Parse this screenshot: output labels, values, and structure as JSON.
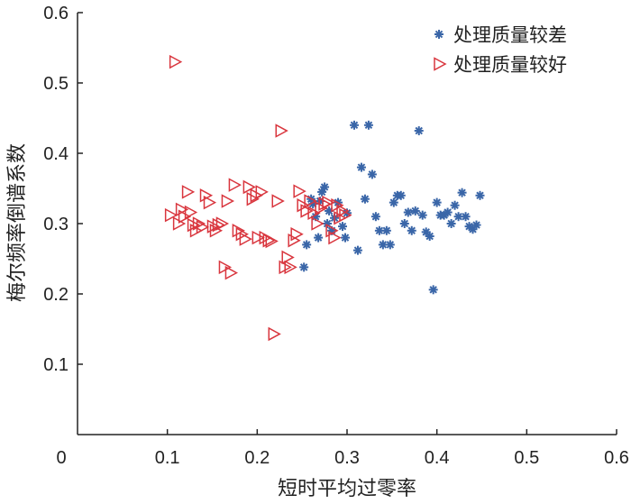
{
  "chart_data": {
    "type": "scatter",
    "title": "",
    "xlabel": "短时平均过零率",
    "ylabel": "梅尔频率倒谱系数",
    "xlim": [
      0,
      0.6
    ],
    "ylim": [
      0,
      0.6
    ],
    "x_ticks": [
      "0",
      "0.1",
      "0.2",
      "0.3",
      "0.4",
      "0.5",
      "0.6"
    ],
    "y_ticks": [
      "0.1",
      "0.2",
      "0.3",
      "0.4",
      "0.5",
      "0.6"
    ],
    "grid": false,
    "legend_position": "top-right",
    "series": [
      {
        "name": "处理质量较差",
        "marker": "asterisk",
        "color": "#3a66a8",
        "points": [
          [
            0.252,
            0.238
          ],
          [
            0.255,
            0.27
          ],
          [
            0.26,
            0.335
          ],
          [
            0.262,
            0.328
          ],
          [
            0.265,
            0.31
          ],
          [
            0.268,
            0.28
          ],
          [
            0.27,
            0.332
          ],
          [
            0.272,
            0.345
          ],
          [
            0.275,
            0.352
          ],
          [
            0.278,
            0.3
          ],
          [
            0.28,
            0.318
          ],
          [
            0.283,
            0.29
          ],
          [
            0.286,
            0.308
          ],
          [
            0.29,
            0.33
          ],
          [
            0.295,
            0.296
          ],
          [
            0.298,
            0.28
          ],
          [
            0.3,
            0.315
          ],
          [
            0.308,
            0.44
          ],
          [
            0.312,
            0.262
          ],
          [
            0.316,
            0.38
          ],
          [
            0.32,
            0.335
          ],
          [
            0.324,
            0.44
          ],
          [
            0.328,
            0.37
          ],
          [
            0.332,
            0.31
          ],
          [
            0.336,
            0.29
          ],
          [
            0.34,
            0.27
          ],
          [
            0.344,
            0.29
          ],
          [
            0.348,
            0.27
          ],
          [
            0.352,
            0.33
          ],
          [
            0.356,
            0.34
          ],
          [
            0.36,
            0.34
          ],
          [
            0.364,
            0.3
          ],
          [
            0.368,
            0.316
          ],
          [
            0.372,
            0.29
          ],
          [
            0.376,
            0.318
          ],
          [
            0.38,
            0.432
          ],
          [
            0.384,
            0.312
          ],
          [
            0.388,
            0.288
          ],
          [
            0.392,
            0.282
          ],
          [
            0.396,
            0.206
          ],
          [
            0.4,
            0.33
          ],
          [
            0.404,
            0.312
          ],
          [
            0.408,
            0.312
          ],
          [
            0.412,
            0.316
          ],
          [
            0.416,
            0.3
          ],
          [
            0.42,
            0.326
          ],
          [
            0.424,
            0.31
          ],
          [
            0.428,
            0.344
          ],
          [
            0.432,
            0.31
          ],
          [
            0.436,
            0.296
          ],
          [
            0.44,
            0.292
          ],
          [
            0.444,
            0.298
          ],
          [
            0.448,
            0.34
          ]
        ]
      },
      {
        "name": "处理质量较好",
        "marker": "triangle-right-open",
        "color": "#d9363e",
        "points": [
          [
            0.103,
            0.312
          ],
          [
            0.108,
            0.53
          ],
          [
            0.112,
            0.3
          ],
          [
            0.115,
            0.32
          ],
          [
            0.118,
            0.31
          ],
          [
            0.122,
            0.345
          ],
          [
            0.125,
            0.316
          ],
          [
            0.128,
            0.298
          ],
          [
            0.131,
            0.29
          ],
          [
            0.134,
            0.3
          ],
          [
            0.138,
            0.295
          ],
          [
            0.142,
            0.34
          ],
          [
            0.146,
            0.33
          ],
          [
            0.15,
            0.296
          ],
          [
            0.153,
            0.29
          ],
          [
            0.156,
            0.298
          ],
          [
            0.16,
            0.3
          ],
          [
            0.163,
            0.238
          ],
          [
            0.166,
            0.332
          ],
          [
            0.17,
            0.23
          ],
          [
            0.174,
            0.355
          ],
          [
            0.178,
            0.29
          ],
          [
            0.182,
            0.285
          ],
          [
            0.186,
            0.278
          ],
          [
            0.19,
            0.352
          ],
          [
            0.194,
            0.335
          ],
          [
            0.198,
            0.34
          ],
          [
            0.2,
            0.28
          ],
          [
            0.204,
            0.345
          ],
          [
            0.208,
            0.28
          ],
          [
            0.212,
            0.276
          ],
          [
            0.215,
            0.275
          ],
          [
            0.218,
            0.143
          ],
          [
            0.222,
            0.332
          ],
          [
            0.226,
            0.432
          ],
          [
            0.23,
            0.238
          ],
          [
            0.233,
            0.252
          ],
          [
            0.236,
            0.238
          ],
          [
            0.24,
            0.276
          ],
          [
            0.243,
            0.285
          ],
          [
            0.246,
            0.346
          ],
          [
            0.25,
            0.326
          ],
          [
            0.254,
            0.318
          ],
          [
            0.258,
            0.332
          ],
          [
            0.262,
            0.315
          ],
          [
            0.266,
            0.3
          ],
          [
            0.27,
            0.322
          ],
          [
            0.274,
            0.328
          ],
          [
            0.278,
            0.33
          ],
          [
            0.282,
            0.29
          ],
          [
            0.285,
            0.28
          ],
          [
            0.288,
            0.326
          ],
          [
            0.291,
            0.308
          ],
          [
            0.294,
            0.318
          ],
          [
            0.297,
            0.312
          ]
        ]
      }
    ]
  }
}
